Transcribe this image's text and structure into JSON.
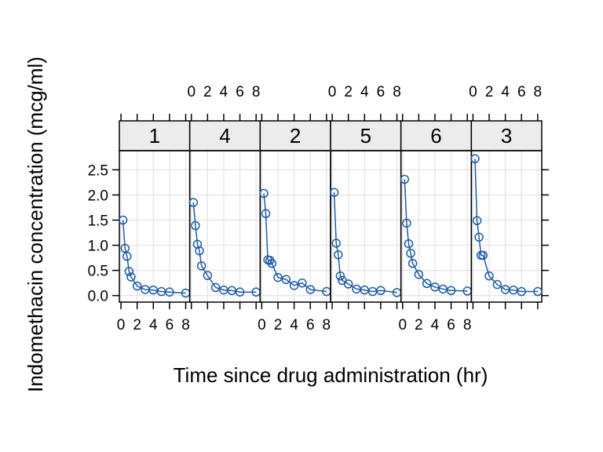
{
  "chart_data": {
    "type": "line",
    "layout": "lattice-panels-1x6",
    "xlabel": "Time since drug administration (hr)",
    "ylabel": "Indomethacin concentration (mcg/ml)",
    "xlim": [
      -0.2,
      8.5
    ],
    "ylim": [
      -0.13,
      2.88
    ],
    "xticks": [
      "0",
      "2",
      "4",
      "6",
      "8"
    ],
    "yticks": [
      0.0,
      0.5,
      1.0,
      1.5,
      2.0,
      2.5
    ],
    "ytick_labels": [
      "0.0",
      "0.5",
      "1.0",
      "1.5",
      "2.0",
      "2.5"
    ],
    "grid": true,
    "series_color": "#1f5ca5",
    "strip_color": "#ececec",
    "grid_color": "#e3e3e3",
    "x": [
      0.25,
      0.5,
      0.75,
      1,
      1.25,
      2,
      3,
      4,
      5,
      6,
      8
    ],
    "panels": [
      {
        "label": "1",
        "values": [
          1.5,
          0.94,
          0.78,
          0.48,
          0.37,
          0.19,
          0.12,
          0.11,
          0.08,
          0.07,
          0.05
        ]
      },
      {
        "label": "4",
        "values": [
          1.85,
          1.39,
          1.02,
          0.89,
          0.59,
          0.4,
          0.16,
          0.11,
          0.1,
          0.07,
          0.07
        ]
      },
      {
        "label": "2",
        "values": [
          2.03,
          1.63,
          0.71,
          0.7,
          0.64,
          0.36,
          0.32,
          0.2,
          0.25,
          0.12,
          0.08
        ]
      },
      {
        "label": "5",
        "values": [
          2.05,
          1.04,
          0.81,
          0.39,
          0.3,
          0.23,
          0.13,
          0.11,
          0.08,
          0.1,
          0.06
        ]
      },
      {
        "label": "6",
        "values": [
          2.31,
          1.44,
          1.03,
          0.84,
          0.64,
          0.42,
          0.24,
          0.17,
          0.13,
          0.1,
          0.09
        ]
      },
      {
        "label": "3",
        "values": [
          2.72,
          1.49,
          1.16,
          0.8,
          0.8,
          0.39,
          0.22,
          0.12,
          0.11,
          0.08,
          0.08
        ]
      }
    ]
  }
}
